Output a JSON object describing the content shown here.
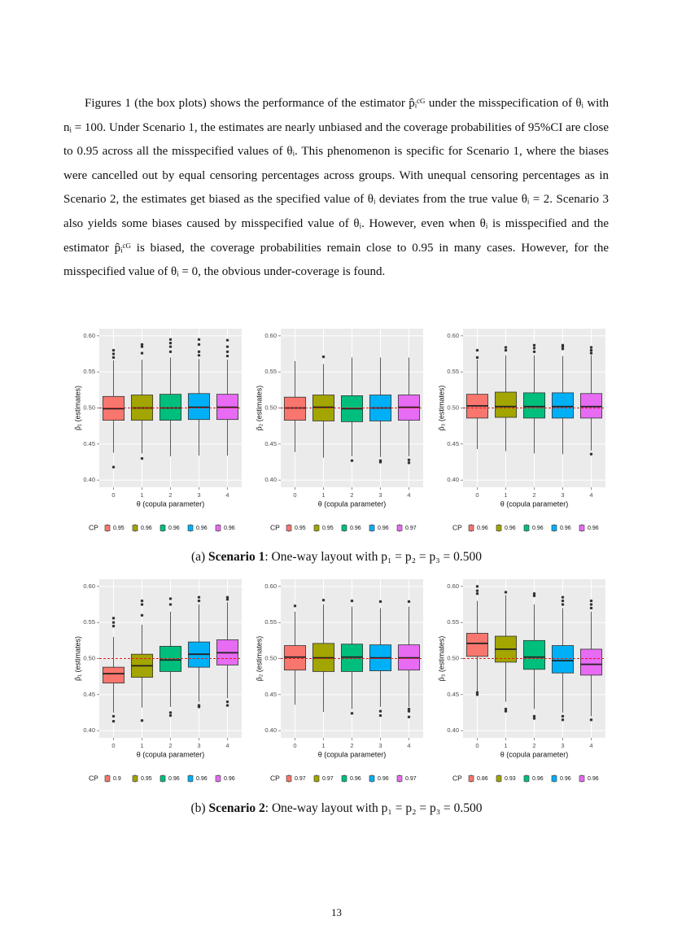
{
  "paragraph": "Figures 1 (the box plots) shows the performance of the estimator p̂ᵢᶜᴳ under the misspecification of θᵢ with nᵢ = 100. Under Scenario 1, the estimates are nearly unbiased and the coverage probabilities of 95%CI are close to 0.95 across all the misspecified values of θᵢ. This phenomenon is specific for Scenario 1, where the biases were cancelled out by equal censoring percentages across groups. With unequal censoring percentages as in Scenario 2, the estimates get biased as the specified value of θᵢ deviates from the true value θᵢ = 2. Scenario 3 also yields some biases caused by misspecified value of θᵢ. However, even when θᵢ is misspecified and the estimator p̂ᵢᶜᴳ is biased, the coverage probabilities remain close to 0.95 in many cases. However, for the misspecified value of θᵢ = 0, the obvious under-coverage is found.",
  "captions": [
    {
      "label": "(a) ",
      "bold": "Scenario 1",
      "rest": ": One-way layout with p₁ = p₂ = p₃ = 0.500"
    },
    {
      "label": "(b) ",
      "bold": "Scenario 2",
      "rest": ": One-way layout with p₁ = p₂ = p₃ = 0.500"
    }
  ],
  "page_number": "13",
  "chart_data": [
    {
      "type": "box",
      "xlabel": "θ (copula parameter)",
      "ylabel": "p̂₁ (estimates)",
      "legend_title": "CP",
      "categories": [
        "0",
        "1",
        "2",
        "3",
        "4"
      ],
      "ylim": [
        0.39,
        0.61
      ],
      "yticks": [
        {
          "value": 0.4,
          "label": "0.40"
        },
        0.45,
        {
          "value": 0.5,
          "label": "0.50"
        },
        0.55,
        {
          "value": 0.6,
          "label": "0.60"
        }
      ],
      "reference_line": 0.5,
      "reference_color": "#e41a1c",
      "series": [
        {
          "name": "0.95",
          "color": "#F8766D",
          "low": 0.438,
          "q1": 0.483,
          "median": 0.499,
          "q3": 0.516,
          "high": 0.566,
          "outliers": [
            0.418,
            0.57,
            0.575,
            0.58
          ]
        },
        {
          "name": "0.96",
          "color": "#A3A500",
          "low": 0.437,
          "q1": 0.483,
          "median": 0.5,
          "q3": 0.518,
          "high": 0.567,
          "outliers": [
            0.43,
            0.576,
            0.585,
            0.588
          ]
        },
        {
          "name": "0.96",
          "color": "#00BF7D",
          "low": 0.433,
          "q1": 0.483,
          "median": 0.5,
          "q3": 0.519,
          "high": 0.57,
          "outliers": [
            0.578,
            0.585,
            0.59,
            0.595
          ]
        },
        {
          "name": "0.96",
          "color": "#00B0F6",
          "low": 0.434,
          "q1": 0.484,
          "median": 0.501,
          "q3": 0.52,
          "high": 0.568,
          "outliers": [
            0.573,
            0.578,
            0.588,
            0.595
          ]
        },
        {
          "name": "0.96",
          "color": "#E76BF3",
          "low": 0.434,
          "q1": 0.484,
          "median": 0.501,
          "q3": 0.519,
          "high": 0.567,
          "outliers": [
            0.572,
            0.578,
            0.585,
            0.594
          ]
        }
      ]
    },
    {
      "type": "box",
      "xlabel": "θ (copula parameter)",
      "ylabel": "p̂₂ (estimates)",
      "legend_title": "CP",
      "categories": [
        "0",
        "1",
        "2",
        "3",
        "4"
      ],
      "ylim": [
        0.39,
        0.61
      ],
      "yticks": [
        {
          "value": 0.4,
          "label": "0.40"
        },
        0.45,
        {
          "value": 0.5,
          "label": "0.50"
        },
        0.55,
        {
          "value": 0.6,
          "label": "0.60"
        }
      ],
      "reference_line": 0.5,
      "reference_color": "#e41a1c",
      "series": [
        {
          "name": "0.95",
          "color": "#F8766D",
          "low": 0.439,
          "q1": 0.483,
          "median": 0.5,
          "q3": 0.515,
          "high": 0.565,
          "outliers": []
        },
        {
          "name": "0.95",
          "color": "#A3A500",
          "low": 0.431,
          "q1": 0.482,
          "median": 0.501,
          "q3": 0.518,
          "high": 0.561,
          "outliers": [
            0.571
          ]
        },
        {
          "name": "0.96",
          "color": "#00BF7D",
          "low": 0.433,
          "q1": 0.481,
          "median": 0.499,
          "q3": 0.517,
          "high": 0.57,
          "outliers": [
            0.427
          ]
        },
        {
          "name": "0.96",
          "color": "#00B0F6",
          "low": 0.432,
          "q1": 0.482,
          "median": 0.5,
          "q3": 0.518,
          "high": 0.57,
          "outliers": [
            0.425,
            0.427
          ]
        },
        {
          "name": "0.97",
          "color": "#E76BF3",
          "low": 0.433,
          "q1": 0.483,
          "median": 0.501,
          "q3": 0.518,
          "high": 0.57,
          "outliers": [
            0.424,
            0.428
          ]
        }
      ]
    },
    {
      "type": "box",
      "xlabel": "θ (copula parameter)",
      "ylabel": "p̂₃ (estimates)",
      "legend_title": "CP",
      "categories": [
        "0",
        "1",
        "2",
        "3",
        "4"
      ],
      "ylim": [
        0.39,
        0.61
      ],
      "yticks": [
        {
          "value": 0.4,
          "label": "0.40"
        },
        0.45,
        {
          "value": 0.5,
          "label": "0.50"
        },
        0.55,
        {
          "value": 0.6,
          "label": "0.60"
        }
      ],
      "reference_line": 0.5,
      "reference_color": "#e41a1c",
      "series": [
        {
          "name": "0.96",
          "color": "#F8766D",
          "low": 0.443,
          "q1": 0.486,
          "median": 0.503,
          "q3": 0.519,
          "high": 0.567,
          "outliers": [
            0.57,
            0.58
          ]
        },
        {
          "name": "0.96",
          "color": "#A3A500",
          "low": 0.44,
          "q1": 0.487,
          "median": 0.502,
          "q3": 0.522,
          "high": 0.573,
          "outliers": [
            0.58,
            0.584
          ]
        },
        {
          "name": "0.96",
          "color": "#00BF7D",
          "low": 0.437,
          "q1": 0.486,
          "median": 0.502,
          "q3": 0.521,
          "high": 0.573,
          "outliers": [
            0.578,
            0.583,
            0.587
          ]
        },
        {
          "name": "0.96",
          "color": "#00B0F6",
          "low": 0.436,
          "q1": 0.486,
          "median": 0.502,
          "q3": 0.521,
          "high": 0.572,
          "outliers": [
            0.582,
            0.585,
            0.587
          ]
        },
        {
          "name": "0.96",
          "color": "#E76BF3",
          "low": 0.441,
          "q1": 0.486,
          "median": 0.502,
          "q3": 0.52,
          "high": 0.573,
          "outliers": [
            0.436,
            0.576,
            0.58,
            0.584
          ]
        }
      ]
    },
    {
      "type": "box",
      "xlabel": "θ (copula parameter)",
      "ylabel": "p̂₁ (estimates)",
      "legend_title": "CP",
      "categories": [
        "0",
        "1",
        "2",
        "3",
        "4"
      ],
      "ylim": [
        0.39,
        0.61
      ],
      "yticks": [
        {
          "value": 0.4,
          "label": "0.40"
        },
        0.45,
        {
          "value": 0.5,
          "label": "0.50"
        },
        0.55,
        {
          "value": 0.6,
          "label": "0.60"
        }
      ],
      "reference_line": 0.5,
      "reference_color": "#e41a1c",
      "series": [
        {
          "name": "0.9",
          "color": "#F8766D",
          "low": 0.425,
          "q1": 0.466,
          "median": 0.479,
          "q3": 0.488,
          "high": 0.53,
          "outliers": [
            0.413,
            0.42,
            0.545,
            0.55,
            0.556
          ]
        },
        {
          "name": "0.95",
          "color": "#A3A500",
          "low": 0.432,
          "q1": 0.474,
          "median": 0.49,
          "q3": 0.506,
          "high": 0.547,
          "outliers": [
            0.414,
            0.56,
            0.575,
            0.58
          ]
        },
        {
          "name": "0.96",
          "color": "#00BF7D",
          "low": 0.433,
          "q1": 0.482,
          "median": 0.498,
          "q3": 0.517,
          "high": 0.565,
          "outliers": [
            0.421,
            0.425,
            0.575,
            0.583
          ]
        },
        {
          "name": "0.96",
          "color": "#00B0F6",
          "low": 0.44,
          "q1": 0.488,
          "median": 0.506,
          "q3": 0.523,
          "high": 0.575,
          "outliers": [
            0.433,
            0.435,
            0.58,
            0.585
          ]
        },
        {
          "name": "0.96",
          "color": "#E76BF3",
          "low": 0.445,
          "q1": 0.491,
          "median": 0.508,
          "q3": 0.526,
          "high": 0.578,
          "outliers": [
            0.435,
            0.44,
            0.582,
            0.585
          ]
        }
      ]
    },
    {
      "type": "box",
      "xlabel": "θ (copula parameter)",
      "ylabel": "p̂₂ (estimates)",
      "legend_title": "CP",
      "categories": [
        "0",
        "1",
        "2",
        "3",
        "4"
      ],
      "ylim": [
        0.39,
        0.61
      ],
      "yticks": [
        {
          "value": 0.4,
          "label": "0.40"
        },
        0.45,
        {
          "value": 0.5,
          "label": "0.50"
        },
        0.55,
        {
          "value": 0.6,
          "label": "0.60"
        }
      ],
      "reference_line": 0.5,
      "reference_color": "#e41a1c",
      "series": [
        {
          "name": "0.97",
          "color": "#F8766D",
          "low": 0.436,
          "q1": 0.484,
          "median": 0.502,
          "q3": 0.518,
          "high": 0.565,
          "outliers": [
            0.573
          ]
        },
        {
          "name": "0.97",
          "color": "#A3A500",
          "low": 0.426,
          "q1": 0.482,
          "median": 0.501,
          "q3": 0.521,
          "high": 0.575,
          "outliers": [
            0.581
          ]
        },
        {
          "name": "0.96",
          "color": "#00BF7D",
          "low": 0.43,
          "q1": 0.482,
          "median": 0.502,
          "q3": 0.52,
          "high": 0.572,
          "outliers": [
            0.424,
            0.58
          ]
        },
        {
          "name": "0.96",
          "color": "#00B0F6",
          "low": 0.433,
          "q1": 0.483,
          "median": 0.501,
          "q3": 0.519,
          "high": 0.57,
          "outliers": [
            0.421,
            0.427,
            0.579
          ]
        },
        {
          "name": "0.97",
          "color": "#E76BF3",
          "low": 0.433,
          "q1": 0.484,
          "median": 0.501,
          "q3": 0.519,
          "high": 0.572,
          "outliers": [
            0.419,
            0.427,
            0.43,
            0.579
          ]
        }
      ]
    },
    {
      "type": "box",
      "xlabel": "θ (copula parameter)",
      "ylabel": "p̂₃ (estimates)",
      "legend_title": "CP",
      "categories": [
        "0",
        "1",
        "2",
        "3",
        "4"
      ],
      "ylim": [
        0.39,
        0.61
      ],
      "yticks": [
        {
          "value": 0.4,
          "label": "0.40"
        },
        0.45,
        {
          "value": 0.5,
          "label": "0.50"
        },
        0.55,
        {
          "value": 0.6,
          "label": "0.60"
        }
      ],
      "reference_line": 0.5,
      "reference_color": "#e41a1c",
      "series": [
        {
          "name": "0.86",
          "color": "#F8766D",
          "low": 0.455,
          "q1": 0.503,
          "median": 0.521,
          "q3": 0.535,
          "high": 0.58,
          "outliers": [
            0.45,
            0.453,
            0.59,
            0.594,
            0.6
          ]
        },
        {
          "name": "0.93",
          "color": "#A3A500",
          "low": 0.44,
          "q1": 0.495,
          "median": 0.513,
          "q3": 0.531,
          "high": 0.588,
          "outliers": [
            0.427,
            0.43,
            0.592
          ]
        },
        {
          "name": "0.96",
          "color": "#00BF7D",
          "low": 0.43,
          "q1": 0.485,
          "median": 0.502,
          "q3": 0.525,
          "high": 0.575,
          "outliers": [
            0.417,
            0.42,
            0.587,
            0.59
          ]
        },
        {
          "name": "0.96",
          "color": "#00B0F6",
          "low": 0.425,
          "q1": 0.48,
          "median": 0.497,
          "q3": 0.518,
          "high": 0.57,
          "outliers": [
            0.415,
            0.42,
            0.575,
            0.58,
            0.585
          ]
        },
        {
          "name": "0.96",
          "color": "#E76BF3",
          "low": 0.42,
          "q1": 0.477,
          "median": 0.492,
          "q3": 0.513,
          "high": 0.565,
          "outliers": [
            0.415,
            0.57,
            0.575,
            0.58
          ]
        }
      ]
    }
  ]
}
